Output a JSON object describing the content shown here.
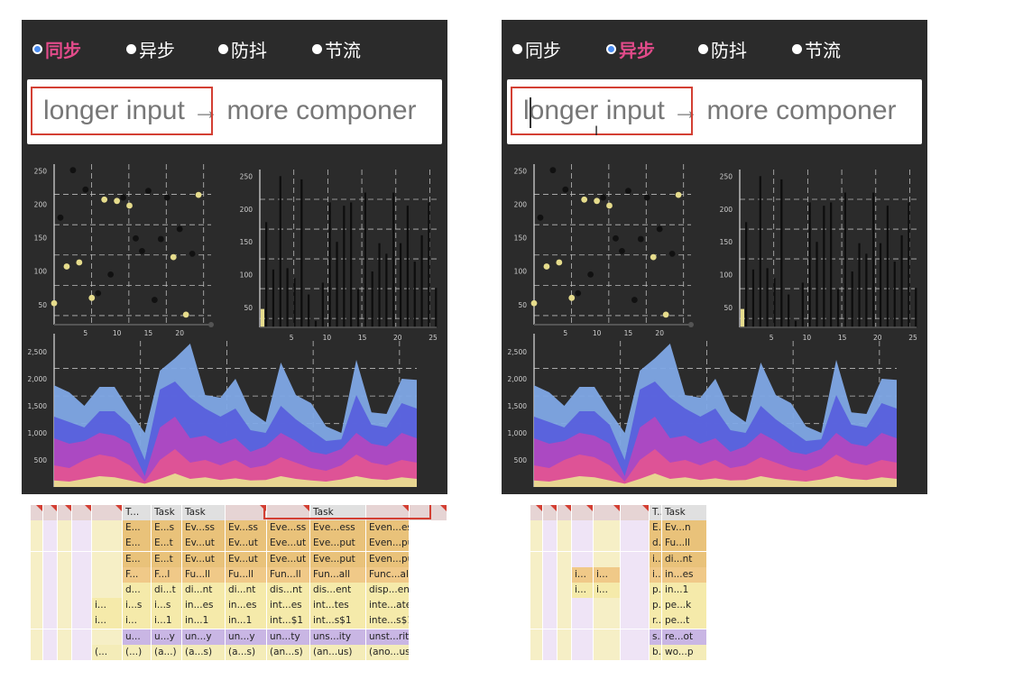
{
  "modes": [
    "同步",
    "异步",
    "防抖",
    "节流"
  ],
  "left": {
    "active_mode": 0
  },
  "right": {
    "active_mode": 1
  },
  "input": {
    "value": "longer input → more componer"
  },
  "colors": {
    "accent_pink": "#e24b8a",
    "radio_blue": "#4a8cf0",
    "highlight_red": "#d33f33",
    "panel_bg": "#2b2b2b"
  },
  "chart_data": [
    {
      "type": "scatter",
      "y_ticks": [
        "250",
        "200",
        "150",
        "100",
        "50"
      ],
      "x_ticks": [
        "5",
        "10",
        "15",
        "20"
      ],
      "ylim": [
        20,
        260
      ],
      "xlim": [
        0,
        25
      ],
      "grid": true,
      "series": [
        {
          "color": "#e6dc8c",
          "points": [
            [
              0,
              52
            ],
            [
              2,
              107
            ],
            [
              4,
              113
            ],
            [
              6,
              60
            ],
            [
              8,
              207
            ],
            [
              10,
              205
            ],
            [
              12,
              198
            ],
            [
              19,
              121
            ],
            [
              21,
              35
            ],
            [
              23,
              214
            ]
          ]
        },
        {
          "color": "#111111",
          "points": [
            [
              1,
              180
            ],
            [
              3,
              251
            ],
            [
              5,
              222
            ],
            [
              7,
              67
            ],
            [
              9,
              95
            ],
            [
              11,
              210
            ],
            [
              13,
              149
            ],
            [
              14,
              130
            ],
            [
              15,
              220
            ],
            [
              16,
              57
            ],
            [
              17,
              148
            ],
            [
              18,
              210
            ],
            [
              20,
              163
            ],
            [
              22,
              126
            ]
          ]
        }
      ]
    },
    {
      "type": "bar",
      "y_ticks": [
        "250",
        "200",
        "150",
        "100",
        "50"
      ],
      "x_ticks": [
        "5",
        "10",
        "15",
        "20",
        "25"
      ],
      "ylim": [
        20,
        260
      ],
      "xlim": [
        0,
        25
      ],
      "grid": true,
      "values": [
        180,
        108,
        250,
        110,
        95,
        245,
        70,
        30,
        88,
        210,
        150,
        205,
        210,
        78,
        225,
        105,
        148,
        132,
        225,
        148,
        205,
        120,
        160,
        210,
        80
      ]
    },
    {
      "type": "area",
      "y_ticks": [
        "2,500",
        "2,000",
        "1,500",
        "1,000",
        "500"
      ],
      "x_ticks": [
        "5",
        "10",
        "15",
        "20"
      ],
      "ylim": [
        0,
        2700
      ],
      "xlim": [
        1,
        25
      ],
      "grid": true,
      "series": [
        {
          "color": "#7fa8e6",
          "values": [
            1880,
            1750,
            1500,
            1850,
            1850,
            1400,
            1000,
            2150,
            2380,
            2650,
            1700,
            1650,
            2000,
            1400,
            1200,
            2300,
            1700,
            1550,
            1120,
            1000,
            2350,
            1380,
            1350,
            2000,
            1980
          ]
        },
        {
          "color": "#5860dc",
          "values": [
            1300,
            1200,
            1100,
            1400,
            1400,
            1150,
            500,
            1800,
            1950,
            1650,
            1450,
            1300,
            1450,
            1050,
            1000,
            1500,
            1250,
            1050,
            850,
            880,
            1700,
            1150,
            1100,
            1550,
            1450
          ]
        },
        {
          "color": "#b048c0",
          "values": [
            900,
            800,
            850,
            1000,
            950,
            800,
            200,
            1100,
            1300,
            900,
            950,
            800,
            900,
            650,
            750,
            1000,
            850,
            650,
            600,
            700,
            1000,
            800,
            750,
            1000,
            900
          ]
        },
        {
          "color": "#e05494",
          "values": [
            400,
            350,
            500,
            600,
            550,
            400,
            100,
            500,
            700,
            450,
            500,
            400,
            500,
            350,
            400,
            550,
            450,
            350,
            300,
            400,
            600,
            450,
            400,
            500,
            450
          ]
        },
        {
          "color": "#e8dc90",
          "values": [
            120,
            100,
            150,
            200,
            180,
            120,
            60,
            150,
            250,
            150,
            180,
            130,
            160,
            120,
            130,
            200,
            150,
            120,
            100,
            140,
            200,
            150,
            130,
            180,
            150
          ]
        }
      ]
    }
  ],
  "flame_left": {
    "rows": [
      [
        "",
        "",
        "",
        "",
        "",
        "T...",
        "Task",
        "Task",
        "",
        "",
        "Task",
        "",
        ""
      ],
      [
        "",
        "",
        "",
        "",
        "",
        "E...",
        "E...s",
        "Ev...ss",
        "Ev...ss",
        "Eve...ss",
        "Eve...ess",
        "Even...ess"
      ],
      [
        "",
        "",
        "",
        "",
        "",
        "E...",
        "E...t",
        "Ev...ut",
        "Ev...ut",
        "Eve...ut",
        "Eve...put",
        "Even...put"
      ],
      [
        "",
        "",
        "",
        "",
        "",
        "E...",
        "E...t",
        "Ev...ut",
        "Ev...ut",
        "Eve...ut",
        "Eve...put",
        "Even...put"
      ],
      [
        "",
        "",
        "",
        "",
        "",
        "F...",
        "F...l",
        "Fu...ll",
        "Fu...ll",
        "Fun...ll",
        "Fun...all",
        "Func...all"
      ],
      [
        "",
        "",
        "",
        "",
        "",
        "d...",
        "di...t",
        "di...nt",
        "di...nt",
        "dis...nt",
        "dis...ent",
        "disp...ent"
      ],
      [
        "",
        "",
        "",
        "",
        "i...",
        "i...s",
        "i...s",
        "in...es",
        "in...es",
        "int...es",
        "int...tes",
        "inte...ates"
      ],
      [
        "",
        "",
        "",
        "",
        "i...",
        "i...",
        "i...1",
        "in...1",
        "in...1",
        "int...$1",
        "int...s$1",
        "inte...s$1"
      ],
      [
        "",
        "",
        "",
        "",
        "",
        "u...",
        "u...y",
        "un...y",
        "un...y",
        "un...ty",
        "uns...ity",
        "unst...rity"
      ],
      [
        "",
        "",
        "",
        "",
        "(...",
        "(...)",
        "(a...)",
        "(a...s)",
        "(a...s)",
        "(an...s)",
        "(an...us)",
        "(ano...us)"
      ]
    ]
  },
  "flame_right": {
    "rows": [
      [
        "",
        "",
        "",
        "",
        "",
        "",
        "T...",
        "Task"
      ],
      [
        "",
        "",
        "",
        "",
        "",
        "",
        "E...n",
        "Ev...n"
      ],
      [
        "",
        "",
        "",
        "",
        "",
        "",
        "d...t",
        "Fu...ll"
      ],
      [
        "",
        "",
        "",
        "",
        "",
        "",
        "i...s",
        "di...nt"
      ],
      [
        "",
        "",
        "",
        "i...",
        "i...",
        "",
        "i...1",
        "in...es"
      ],
      [
        "",
        "",
        "",
        "i...",
        "i...",
        "",
        "p...",
        "in...1"
      ],
      [
        "",
        "",
        "",
        "",
        "",
        "",
        "p...t",
        "pe...k"
      ],
      [
        "",
        "",
        "",
        "",
        "",
        "",
        "r...t",
        "pe...t"
      ],
      [
        "",
        "",
        "",
        "",
        "",
        "",
        "s...r",
        "re...ot"
      ],
      [
        "",
        "",
        "",
        "",
        "",
        "",
        "b...",
        "wo...p"
      ]
    ]
  }
}
